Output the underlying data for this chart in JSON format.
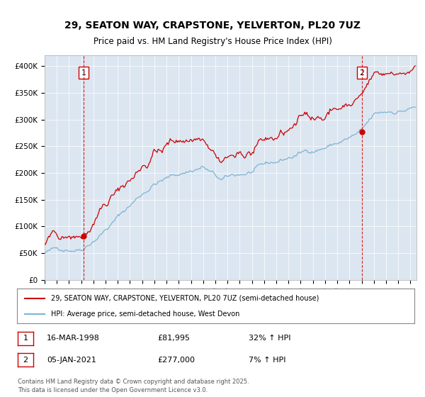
{
  "title_line1": "29, SEATON WAY, CRAPSTONE, YELVERTON, PL20 7UZ",
  "title_line2": "Price paid vs. HM Land Registry's House Price Index (HPI)",
  "bg_color": "#dce6f1",
  "fig_bg_color": "#ffffff",
  "red_color": "#cc0000",
  "blue_color": "#7fb3d3",
  "sale1_date_num": 1998.21,
  "sale1_price": 81995,
  "sale2_date_num": 2021.01,
  "sale2_price": 277000,
  "ylim": [
    0,
    420000
  ],
  "xlim_start": 1995.0,
  "xlim_end": 2025.5,
  "legend_label1": "29, SEATON WAY, CRAPSTONE, YELVERTON, PL20 7UZ (semi-detached house)",
  "legend_label2": "HPI: Average price, semi-detached house, West Devon",
  "annotation1_date": "16-MAR-1998",
  "annotation1_price": "£81,995",
  "annotation1_hpi": "32% ↑ HPI",
  "annotation2_date": "05-JAN-2021",
  "annotation2_price": "£277,000",
  "annotation2_hpi": "7% ↑ HPI",
  "footer": "Contains HM Land Registry data © Crown copyright and database right 2025.\nThis data is licensed under the Open Government Licence v3.0.",
  "ytick_labels": [
    "£0",
    "£50K",
    "£100K",
    "£150K",
    "£200K",
    "£250K",
    "£300K",
    "£350K",
    "£400K"
  ],
  "ytick_values": [
    0,
    50000,
    100000,
    150000,
    200000,
    250000,
    300000,
    350000,
    400000
  ]
}
